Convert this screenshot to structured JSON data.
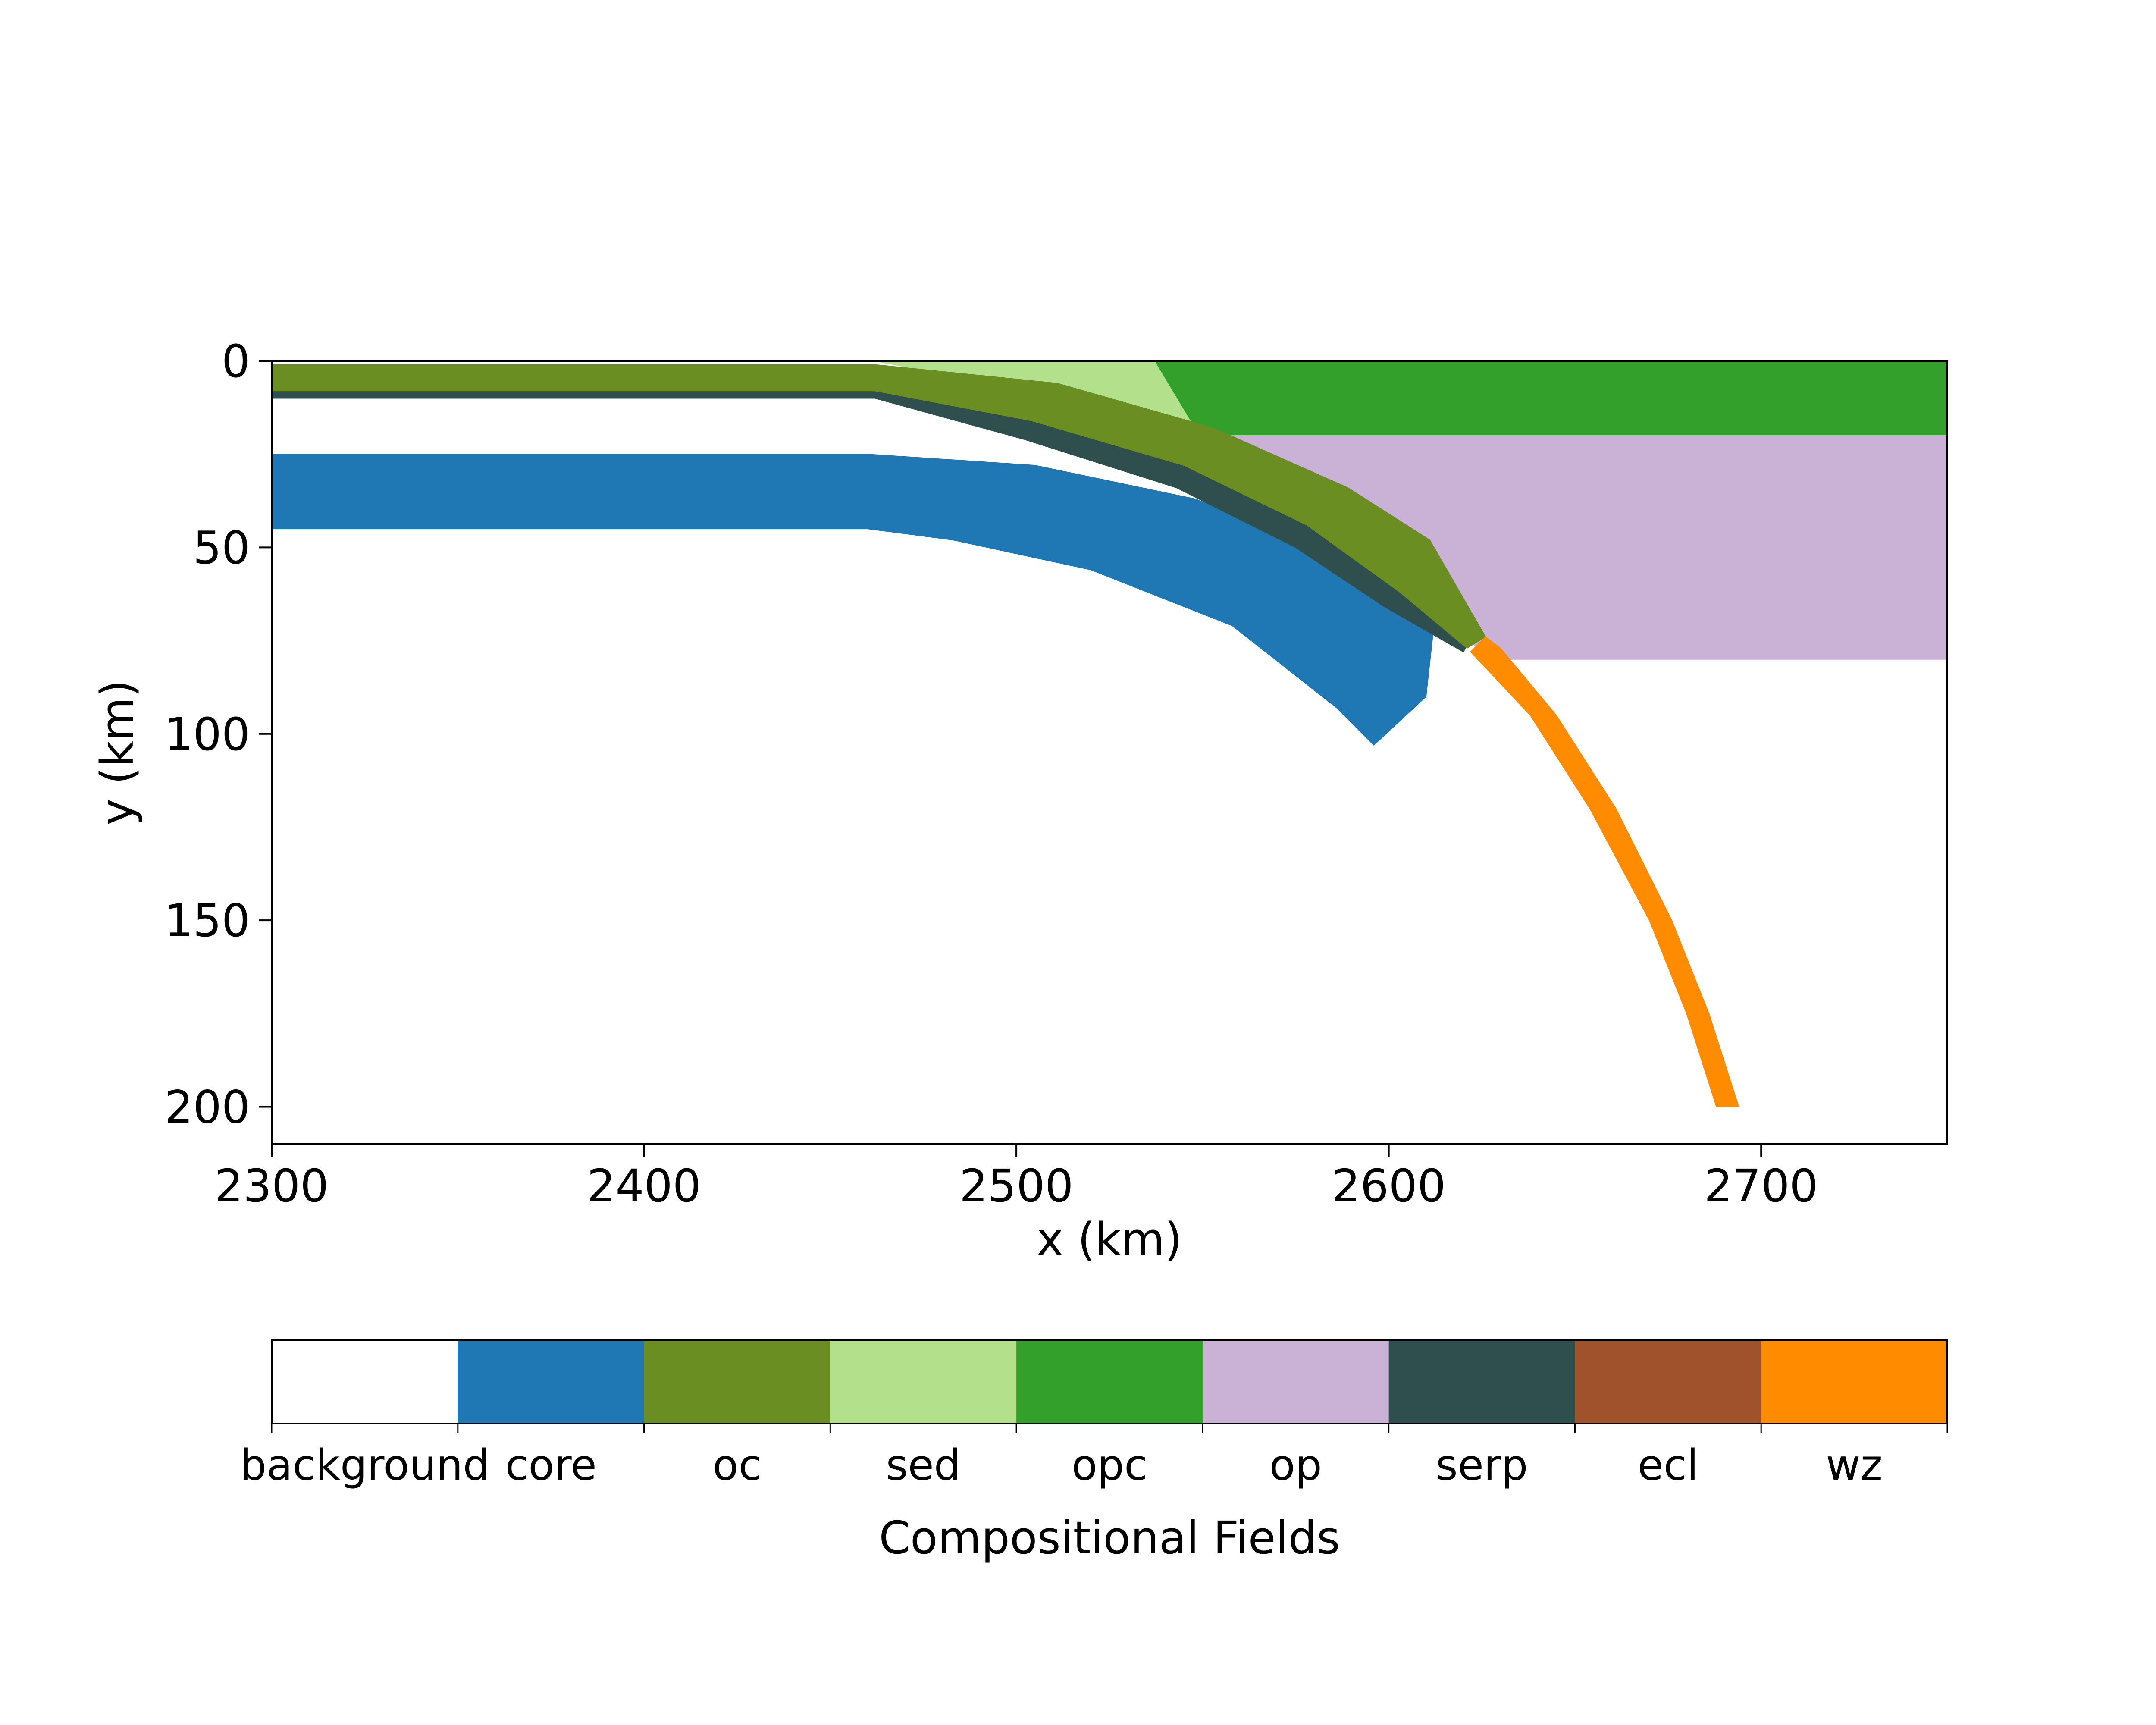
{
  "chart_data": {
    "type": "area",
    "title": "",
    "xlabel": "x (km)",
    "ylabel": "y (km)",
    "xlim": [
      2300,
      2750
    ],
    "ylim": [
      210,
      0
    ],
    "y_inverted": true,
    "grid": false,
    "x_ticks": [
      2300,
      2400,
      2500,
      2600,
      2700
    ],
    "x_tick_labels": [
      "2300",
      "2400",
      "2500",
      "2600",
      "2700"
    ],
    "y_ticks": [
      0,
      50,
      100,
      150,
      200
    ],
    "y_tick_labels": [
      "0",
      "50",
      "100",
      "150",
      "200"
    ],
    "fields": [
      {
        "name": "background",
        "color": "#ffffff"
      },
      {
        "name": "core",
        "color": "#1f77b4"
      },
      {
        "name": "oc",
        "color": "#6b8e23"
      },
      {
        "name": "sed",
        "color": "#b3e08b"
      },
      {
        "name": "opc",
        "color": "#33a02c"
      },
      {
        "name": "op",
        "color": "#cab2d6"
      },
      {
        "name": "serp",
        "color": "#2f4f4f"
      },
      {
        "name": "ecl",
        "color": "#a0522d"
      },
      {
        "name": "wz",
        "color": "#ff8c00"
      }
    ],
    "colorbar": {
      "label": "Compositional Fields",
      "placement": "bottom"
    },
    "regions": [
      {
        "field": "opc",
        "polygon": [
          [
            2537,
            0
          ],
          [
            2750,
            0
          ],
          [
            2750,
            20
          ],
          [
            2549,
            20
          ]
        ]
      },
      {
        "field": "op",
        "polygon": [
          [
            2549,
            20
          ],
          [
            2750,
            20
          ],
          [
            2750,
            80
          ],
          [
            2628,
            80
          ]
        ]
      },
      {
        "field": "sed",
        "polygon": [
          [
            2462,
            0
          ],
          [
            2537,
            0
          ],
          [
            2549,
            20
          ],
          [
            2520,
            11
          ]
        ]
      },
      {
        "field": "core",
        "polygon": [
          [
            2300,
            25
          ],
          [
            2460,
            25
          ],
          [
            2505,
            28
          ],
          [
            2548,
            37
          ],
          [
            2586,
            52
          ],
          [
            2610,
            68
          ],
          [
            2612,
            72
          ],
          [
            2610,
            90
          ],
          [
            2596,
            103
          ],
          [
            2586,
            93
          ],
          [
            2558,
            71
          ],
          [
            2520,
            56
          ],
          [
            2483,
            48
          ],
          [
            2460,
            45
          ],
          [
            2300,
            45
          ]
        ]
      },
      {
        "field": "serp",
        "polygon": [
          [
            2300,
            8
          ],
          [
            2462,
            8
          ],
          [
            2507,
            13
          ],
          [
            2547,
            25
          ],
          [
            2582,
            43
          ],
          [
            2605,
            58
          ],
          [
            2624,
            72
          ],
          [
            2620,
            78
          ],
          [
            2599,
            66
          ],
          [
            2575,
            50
          ],
          [
            2543,
            34
          ],
          [
            2502,
            21
          ],
          [
            2462,
            10
          ],
          [
            2300,
            10
          ]
        ]
      },
      {
        "field": "oc",
        "polygon": [
          [
            2300,
            1
          ],
          [
            2462,
            1
          ],
          [
            2511,
            6
          ],
          [
            2553,
            18
          ],
          [
            2589,
            34
          ],
          [
            2611,
            48
          ],
          [
            2626,
            74
          ],
          [
            2621,
            77
          ],
          [
            2603,
            62
          ],
          [
            2578,
            44
          ],
          [
            2545,
            28
          ],
          [
            2504,
            16
          ],
          [
            2462,
            8
          ],
          [
            2300,
            8
          ]
        ]
      },
      {
        "field": "wz",
        "polygon": [
          [
            2626,
            74
          ],
          [
            2630,
            77
          ],
          [
            2645,
            95
          ],
          [
            2661,
            120
          ],
          [
            2676,
            150
          ],
          [
            2686,
            175
          ],
          [
            2694,
            200
          ],
          [
            2688,
            200
          ],
          [
            2680,
            175
          ],
          [
            2670,
            150
          ],
          [
            2654,
            120
          ],
          [
            2638,
            95
          ],
          [
            2622,
            78
          ]
        ]
      }
    ]
  }
}
